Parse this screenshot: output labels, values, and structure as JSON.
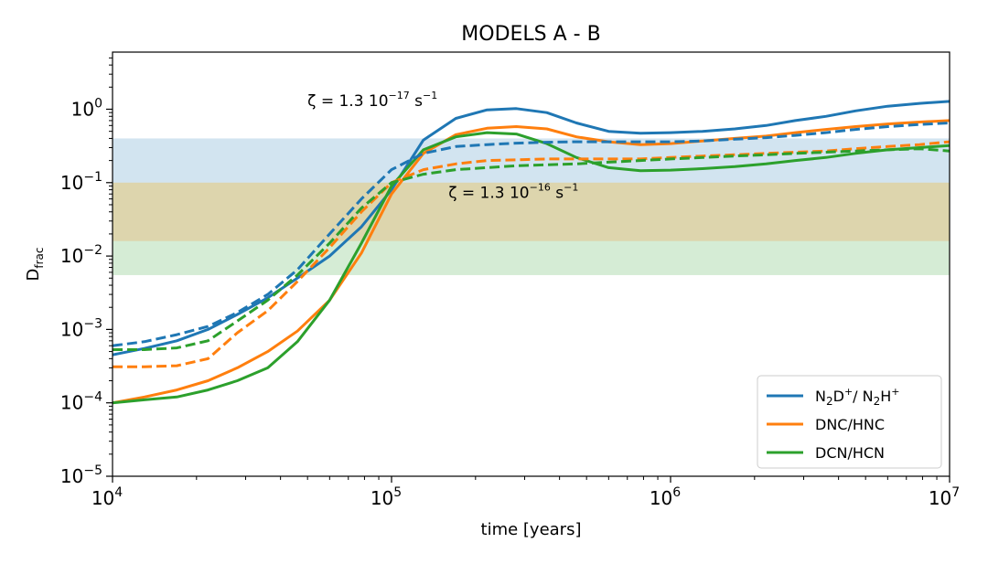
{
  "chart_data": {
    "type": "line",
    "title": "MODELS A - B",
    "xlabel": "time [years]",
    "ylabel": {
      "base": "D",
      "sub": "frac"
    },
    "xscale": "log",
    "yscale": "log",
    "xlim": [
      10000,
      10000000
    ],
    "ylim": [
      1e-05,
      6
    ],
    "x_ticks": [
      {
        "value": 10000,
        "base": "10",
        "exp": "4"
      },
      {
        "value": 100000,
        "base": "10",
        "exp": "5"
      },
      {
        "value": 1000000,
        "base": "10",
        "exp": "6"
      },
      {
        "value": 10000000,
        "base": "10",
        "exp": "7"
      }
    ],
    "y_ticks": [
      {
        "value": 1e-05,
        "base": "10",
        "exp": "−5"
      },
      {
        "value": 0.0001,
        "base": "10",
        "exp": "−4"
      },
      {
        "value": 0.001,
        "base": "10",
        "exp": "−3"
      },
      {
        "value": 0.01,
        "base": "10",
        "exp": "−2"
      },
      {
        "value": 0.1,
        "base": "10",
        "exp": "−1"
      },
      {
        "value": 1,
        "base": "10",
        "exp": "0"
      }
    ],
    "bands": [
      {
        "ymin": 0.1,
        "ymax": 0.4,
        "color": "#1f77b4"
      },
      {
        "ymin": 0.0055,
        "ymax": 0.1,
        "color": "#2ca02c"
      },
      {
        "ymin": 0.016,
        "ymax": 0.1,
        "color": "#ff7f0e"
      }
    ],
    "series": [
      {
        "name": "N2D+/N2H+",
        "color": "#1f77b4",
        "style": "solid",
        "x": [
          10000,
          13000,
          17000,
          22000,
          28000,
          36000,
          46000,
          60000,
          78000,
          100000,
          130000,
          170000,
          220000,
          280000,
          360000,
          460000,
          600000,
          780000,
          1000000,
          1300000,
          1700000,
          2200000,
          2800000,
          3600000,
          4600000,
          6000000,
          7800000,
          10000000
        ],
        "y": [
          0.00045,
          0.00055,
          0.0007,
          0.001,
          0.0016,
          0.0027,
          0.005,
          0.01,
          0.025,
          0.08,
          0.38,
          0.75,
          0.98,
          1.02,
          0.9,
          0.65,
          0.5,
          0.47,
          0.48,
          0.5,
          0.54,
          0.6,
          0.7,
          0.8,
          0.95,
          1.1,
          1.2,
          1.28
        ]
      },
      {
        "name": "DNC/HNC",
        "color": "#ff7f0e",
        "style": "solid",
        "x": [
          10000,
          13000,
          17000,
          22000,
          28000,
          36000,
          46000,
          60000,
          78000,
          100000,
          130000,
          170000,
          220000,
          280000,
          360000,
          460000,
          600000,
          780000,
          1000000,
          1300000,
          1700000,
          2200000,
          2800000,
          3600000,
          4600000,
          6000000,
          7800000,
          10000000
        ],
        "y": [
          0.0001,
          0.00012,
          0.00015,
          0.0002,
          0.0003,
          0.0005,
          0.00095,
          0.0025,
          0.011,
          0.07,
          0.25,
          0.45,
          0.55,
          0.58,
          0.54,
          0.42,
          0.36,
          0.33,
          0.34,
          0.37,
          0.4,
          0.43,
          0.48,
          0.53,
          0.58,
          0.63,
          0.67,
          0.7
        ]
      },
      {
        "name": "DCN/HCN",
        "color": "#2ca02c",
        "style": "solid",
        "x": [
          10000,
          13000,
          17000,
          22000,
          28000,
          36000,
          46000,
          60000,
          78000,
          100000,
          130000,
          170000,
          220000,
          280000,
          360000,
          460000,
          600000,
          780000,
          1000000,
          1300000,
          1700000,
          2200000,
          2800000,
          3600000,
          4600000,
          6000000,
          7800000,
          10000000
        ],
        "y": [
          0.0001,
          0.00011,
          0.00012,
          0.00015,
          0.0002,
          0.0003,
          0.00068,
          0.0025,
          0.015,
          0.09,
          0.28,
          0.42,
          0.48,
          0.46,
          0.34,
          0.22,
          0.16,
          0.145,
          0.148,
          0.155,
          0.165,
          0.18,
          0.2,
          0.22,
          0.25,
          0.28,
          0.3,
          0.32
        ]
      },
      {
        "name": "",
        "color": "#1f77b4",
        "style": "dashed",
        "x": [
          10000,
          13000,
          17000,
          22000,
          28000,
          36000,
          46000,
          60000,
          78000,
          100000,
          130000,
          170000,
          220000,
          280000,
          360000,
          460000,
          600000,
          780000,
          1000000,
          1300000,
          1700000,
          2200000,
          2800000,
          3600000,
          4600000,
          6000000,
          7800000,
          10000000
        ],
        "y": [
          0.0006,
          0.00068,
          0.00085,
          0.0011,
          0.0017,
          0.003,
          0.0065,
          0.02,
          0.06,
          0.15,
          0.25,
          0.31,
          0.33,
          0.345,
          0.355,
          0.36,
          0.36,
          0.36,
          0.36,
          0.37,
          0.39,
          0.41,
          0.44,
          0.48,
          0.53,
          0.58,
          0.62,
          0.65
        ]
      },
      {
        "name": "",
        "color": "#ff7f0e",
        "style": "dashed",
        "x": [
          10000,
          13000,
          17000,
          22000,
          28000,
          36000,
          46000,
          60000,
          78000,
          100000,
          130000,
          170000,
          220000,
          280000,
          360000,
          460000,
          600000,
          780000,
          1000000,
          1300000,
          1700000,
          2200000,
          2800000,
          3600000,
          4600000,
          6000000,
          7800000,
          10000000
        ],
        "y": [
          0.00031,
          0.00031,
          0.00032,
          0.0004,
          0.0009,
          0.0018,
          0.0045,
          0.013,
          0.04,
          0.1,
          0.15,
          0.18,
          0.2,
          0.205,
          0.21,
          0.21,
          0.21,
          0.21,
          0.22,
          0.23,
          0.24,
          0.25,
          0.26,
          0.27,
          0.29,
          0.31,
          0.33,
          0.36
        ]
      },
      {
        "name": "",
        "color": "#2ca02c",
        "style": "dashed",
        "x": [
          10000,
          13000,
          17000,
          22000,
          28000,
          36000,
          46000,
          60000,
          78000,
          100000,
          130000,
          170000,
          220000,
          280000,
          360000,
          460000,
          600000,
          780000,
          1000000,
          1300000,
          1700000,
          2200000,
          2800000,
          3600000,
          4600000,
          6000000,
          7800000,
          10000000
        ],
        "y": [
          0.00053,
          0.00053,
          0.00056,
          0.0007,
          0.0013,
          0.0025,
          0.0055,
          0.015,
          0.045,
          0.1,
          0.13,
          0.15,
          0.16,
          0.17,
          0.175,
          0.18,
          0.19,
          0.2,
          0.21,
          0.22,
          0.23,
          0.24,
          0.25,
          0.26,
          0.27,
          0.28,
          0.29,
          0.27
        ]
      }
    ],
    "annotations": [
      {
        "id": "zeta-17",
        "text": "ζ = 1.3 10",
        "exp": "−17",
        "tail": " s",
        "tail_exp": "−1",
        "x": 50000,
        "y": 1.1
      },
      {
        "id": "zeta-16",
        "text": "ζ = 1.3 10",
        "exp": "−16",
        "tail": " s",
        "tail_exp": "−1",
        "x": 160000,
        "y": 0.062
      }
    ],
    "legend": {
      "position": "bottom-right",
      "entries": [
        {
          "color": "#1f77b4",
          "label": "N2D+/ N2H+"
        },
        {
          "color": "#ff7f0e",
          "label": "DNC/HNC"
        },
        {
          "color": "#2ca02c",
          "label": "DCN/HCN"
        }
      ]
    }
  }
}
